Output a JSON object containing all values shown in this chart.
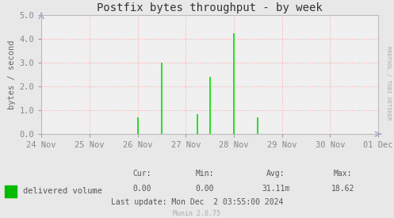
{
  "title": "Postfix bytes throughput - by week",
  "ylabel": "bytes / second",
  "bg_color": "#e8e8e8",
  "plot_bg_color": "#f0f0f0",
  "grid_color": "#ffaaaa",
  "ylim": [
    0.0,
    5.0
  ],
  "ytick_vals": [
    0.0,
    1.0,
    2.0,
    3.0,
    4.0,
    5.0
  ],
  "ytick_labels": [
    "0.0",
    "1.0",
    "2.0",
    "3.0",
    "4.0",
    "5.0"
  ],
  "xlabel_dates": [
    "24 Nov",
    "25 Nov",
    "26 Nov",
    "27 Nov",
    "28 Nov",
    "29 Nov",
    "30 Nov",
    "01 Dec"
  ],
  "spike_x_fracs": [
    0.214,
    0.286,
    0.357,
    0.464,
    0.5,
    0.514,
    0.571,
    0.643,
    0.65
  ],
  "spike_heights": [
    0.0,
    0.7,
    3.0,
    0.85,
    2.4,
    0.0,
    4.25,
    0.7,
    0.0
  ],
  "line_color": "#00dd00",
  "legend_label": "delivered volume",
  "legend_color": "#00bb00",
  "cur_label": "Cur:",
  "cur_val": "0.00",
  "min_label": "Min:",
  "min_val": "0.00",
  "avg_label": "Avg:",
  "avg_val": "31.11m",
  "max_label": "Max:",
  "max_val": "18.62",
  "last_update": "Last update: Mon Dec  2 03:55:00 2024",
  "watermark": "Munin 2.0.75",
  "rrdtool_label": "RRDTOOL / TOBI OETIKER",
  "title_fontsize": 10,
  "axis_fontsize": 7.5,
  "legend_fontsize": 7.5,
  "footer_fontsize": 7,
  "watermark_fontsize": 6
}
